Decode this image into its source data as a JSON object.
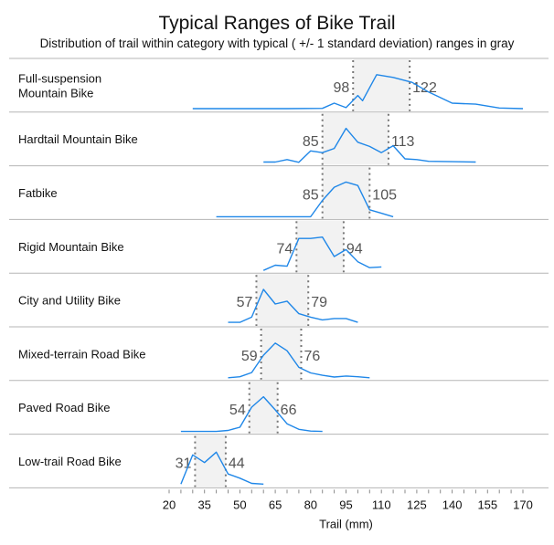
{
  "chart_data": {
    "type": "line",
    "title": "Typical Ranges of Bike Trail",
    "subtitle": "Distribution of trail within category with typical ( +/- 1 standard deviation) ranges in gray",
    "xlabel": "Trail (mm)",
    "ylabel": "",
    "xlim": [
      20,
      172
    ],
    "x_ticks": [
      20,
      35,
      50,
      65,
      80,
      95,
      110,
      125,
      140,
      155,
      170
    ],
    "x_minor_step": 5,
    "grid": false,
    "colors": {
      "line": "#1f87e8",
      "band": "#f2f2f2",
      "divider": "#b5b5b5",
      "range_label": "#555555",
      "dotted": "#777777"
    },
    "series": [
      {
        "name": "Full-suspension Mountain Bike",
        "label_lines": [
          "Full-suspension",
          "Mountain Bike"
        ],
        "range_low": 98,
        "range_high": 122,
        "x": [
          30,
          50,
          70,
          85,
          90,
          95,
          100,
          102,
          108,
          115,
          123,
          130,
          140,
          150,
          160,
          170
        ],
        "y": [
          0.02,
          0.02,
          0.02,
          0.03,
          0.18,
          0.05,
          0.4,
          0.25,
          1.0,
          0.92,
          0.78,
          0.5,
          0.18,
          0.15,
          0.04,
          0.02
        ]
      },
      {
        "name": "Hardtail Mountain Bike",
        "label_lines": [
          "Hardtail Mountain Bike"
        ],
        "range_low": 85,
        "range_high": 113,
        "x": [
          60,
          65,
          70,
          75,
          80,
          85,
          90,
          95,
          100,
          105,
          110,
          115,
          120,
          125,
          130,
          140,
          150
        ],
        "y": [
          0.03,
          0.03,
          0.1,
          0.02,
          0.35,
          0.3,
          0.42,
          1.0,
          0.6,
          0.48,
          0.3,
          0.5,
          0.12,
          0.1,
          0.05,
          0.04,
          0.03
        ]
      },
      {
        "name": "Fatbike",
        "label_lines": [
          "Fatbike"
        ],
        "range_low": 85,
        "range_high": 105,
        "x": [
          40,
          50,
          60,
          70,
          80,
          85,
          90,
          95,
          100,
          105,
          110,
          115
        ],
        "y": [
          0.0,
          0.0,
          0.0,
          0.0,
          0.0,
          0.47,
          0.85,
          1.0,
          0.9,
          0.2,
          0.1,
          0.0
        ]
      },
      {
        "name": "Rigid Mountain Bike",
        "label_lines": [
          "Rigid Mountain Bike"
        ],
        "range_low": 74,
        "range_high": 94,
        "x": [
          60,
          65,
          70,
          75,
          80,
          85,
          90,
          95,
          100,
          105,
          110
        ],
        "y": [
          0.0,
          0.15,
          0.12,
          0.92,
          0.92,
          0.96,
          0.4,
          0.6,
          0.25,
          0.08,
          0.1
        ]
      },
      {
        "name": "City and Utility Bike",
        "label_lines": [
          "City and Utility Bike"
        ],
        "range_low": 57,
        "range_high": 79,
        "x": [
          45,
          50,
          55,
          60,
          65,
          70,
          75,
          80,
          85,
          90,
          95,
          100
        ],
        "y": [
          0.05,
          0.05,
          0.2,
          1.0,
          0.58,
          0.66,
          0.3,
          0.2,
          0.12,
          0.16,
          0.16,
          0.05
        ]
      },
      {
        "name": "Mixed-terrain Road Bike",
        "label_lines": [
          "Mixed-terrain Road Bike"
        ],
        "range_low": 59,
        "range_high": 76,
        "x": [
          45,
          50,
          55,
          60,
          65,
          70,
          75,
          80,
          85,
          90,
          95,
          100,
          105
        ],
        "y": [
          0.0,
          0.03,
          0.15,
          0.65,
          1.0,
          0.78,
          0.3,
          0.14,
          0.07,
          0.02,
          0.05,
          0.03,
          0.0
        ]
      },
      {
        "name": "Paved Road Bike",
        "label_lines": [
          "Paved Road Bike"
        ],
        "range_low": 54,
        "range_high": 66,
        "x": [
          25,
          30,
          35,
          40,
          45,
          50,
          55,
          60,
          65,
          70,
          75,
          80,
          85
        ],
        "y": [
          0.0,
          0.0,
          0.0,
          0.0,
          0.03,
          0.12,
          0.7,
          1.0,
          0.62,
          0.22,
          0.06,
          0.01,
          0.0
        ]
      },
      {
        "name": "Low-trail Road Bike",
        "label_lines": [
          "Low-trail Road Bike"
        ],
        "range_low": 31,
        "range_high": 44,
        "x": [
          25,
          30,
          35,
          40,
          45,
          50,
          55,
          60
        ],
        "y": [
          0.03,
          0.87,
          0.65,
          0.95,
          0.32,
          0.2,
          0.05,
          0.03
        ]
      }
    ]
  }
}
